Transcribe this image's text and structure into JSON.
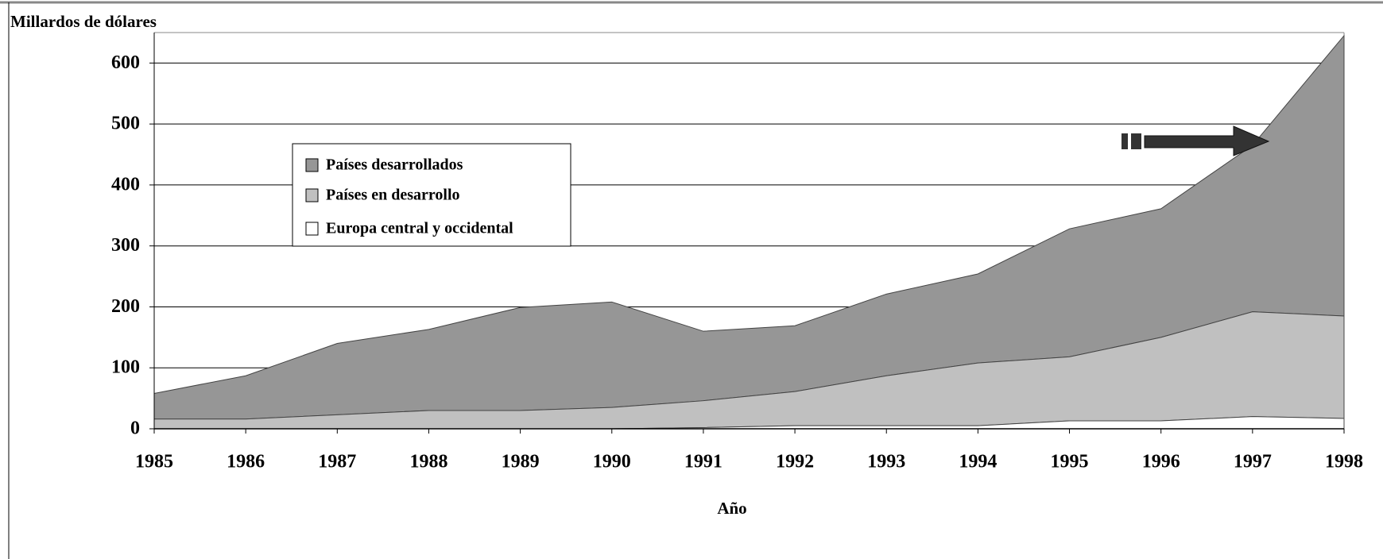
{
  "chart_data": {
    "type": "stacked_area",
    "y_label": "Millardos de dólares",
    "x_label": "Año",
    "categories": [
      "1985",
      "1986",
      "1987",
      "1988",
      "1989",
      "1990",
      "1991",
      "1992",
      "1993",
      "1994",
      "1995",
      "1996",
      "1997",
      "1998"
    ],
    "series": [
      {
        "name": "Países desarrollados",
        "color": "#969696",
        "values": [
          42,
          71,
          117,
          133,
          169,
          173,
          114,
          108,
          134,
          146,
          210,
          211,
          273,
          460
        ]
      },
      {
        "name": "Países en desarrollo",
        "color": "#c0c0c0",
        "values": [
          16,
          16,
          23,
          30,
          30,
          35,
          44,
          56,
          82,
          103,
          105,
          137,
          172,
          168
        ]
      },
      {
        "name": "Europa central y occidental",
        "color": "#ffffff",
        "values": [
          0,
          0,
          0,
          0,
          0,
          0,
          2,
          5,
          5,
          5,
          13,
          13,
          20,
          17
        ]
      }
    ],
    "ylim": [
      0,
      650
    ],
    "yticks": [
      0,
      100,
      200,
      300,
      400,
      500,
      600
    ],
    "grid": true
  }
}
